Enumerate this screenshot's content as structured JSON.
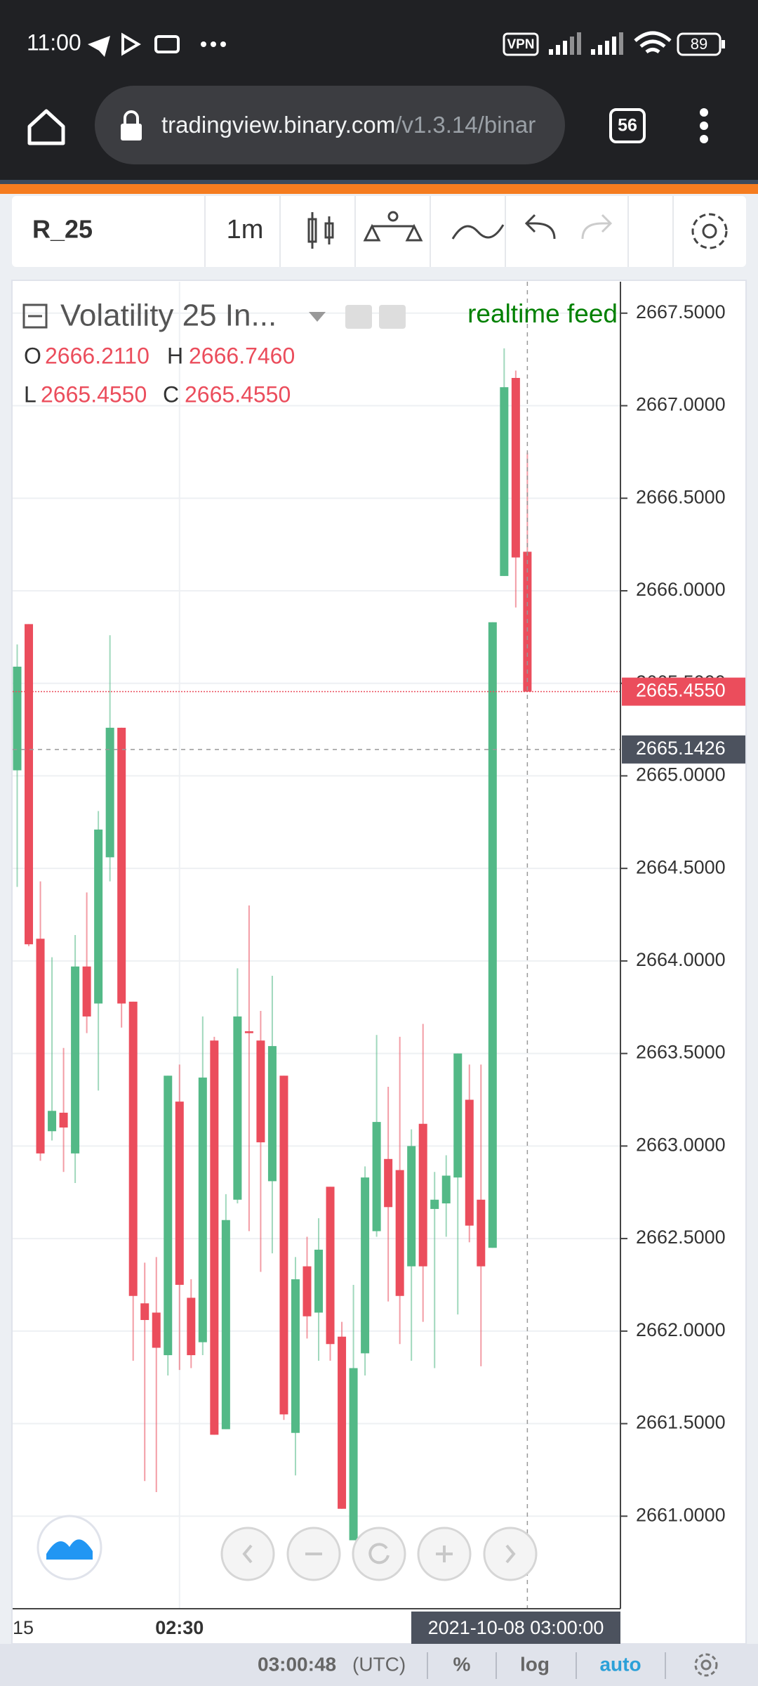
{
  "status_bar": {
    "time": "11:00",
    "vpn": "VPN",
    "battery": "89"
  },
  "browser": {
    "url_host": "tradingview.binary.com",
    "url_path": "/v1.3.14/binar",
    "tab_count": "56"
  },
  "toolbar": {
    "symbol": "R_25",
    "interval": "1m"
  },
  "legend": {
    "title": "Volatility 25 In...",
    "feed": "realtime feed",
    "o": "O",
    "o_value": "2666.2110",
    "h": "H",
    "h_value": "2666.7460",
    "l": "L",
    "l_value": "2665.4550",
    "c": "C",
    "c_value": "2665.4550"
  },
  "chart_data": {
    "type": "candlestick",
    "categories": [
      null,
      null,
      null,
      null,
      null,
      null,
      null,
      null,
      null,
      null,
      null,
      null,
      null,
      null,
      "02:30",
      null,
      null,
      null,
      null,
      null,
      null,
      null,
      null,
      null,
      null,
      null,
      null,
      null,
      null,
      null,
      null,
      null,
      null,
      null,
      null,
      null,
      null,
      null,
      null,
      null,
      null,
      null,
      null,
      null,
      null
    ],
    "open": [
      2665.03,
      2665.82,
      2664.12,
      2663.08,
      2663.18,
      2662.96,
      2663.97,
      2663.77,
      2664.56,
      2665.26,
      2663.78,
      2662.15,
      2662.1,
      2661.87,
      2663.24,
      2662.18,
      2661.94,
      2663.57,
      2661.47,
      2662.71,
      2663.62,
      2663.57,
      2662.81,
      2663.38,
      2661.45,
      2662.35,
      2662.1,
      2662.78,
      2661.97,
      2660.87,
      2661.88,
      2662.54,
      2662.93,
      2662.87,
      2662.35,
      2663.12,
      2662.66,
      2662.69,
      2662.83,
      2663.25,
      2662.71,
      2662.45,
      2666.08,
      2667.15,
      2666.211
    ],
    "high": [
      2665.71,
      2665.82,
      2664.43,
      2664.02,
      2663.53,
      2664.14,
      2664.37,
      2664.81,
      2665.76,
      2665.26,
      2663.78,
      2662.37,
      2662.4,
      2663.38,
      2663.44,
      2662.28,
      2663.7,
      2663.59,
      2662.74,
      2663.96,
      2664.3,
      2663.73,
      2663.92,
      2663.38,
      2662.4,
      2662.51,
      2662.61,
      2662.78,
      2662.05,
      2662.25,
      2662.89,
      2663.6,
      2663.32,
      2663.59,
      2663.09,
      2663.66,
      2662.86,
      2662.95,
      2663.5,
      2663.44,
      2663.44,
      2665.83,
      2667.31,
      2667.19,
      2666.746
    ],
    "low": [
      2664.4,
      2664.08,
      2662.92,
      2663.03,
      2662.86,
      2662.8,
      2663.61,
      2663.3,
      2664.43,
      2663.64,
      2661.84,
      2661.19,
      2661.13,
      2661.76,
      2661.79,
      2661.8,
      2661.87,
      2661.44,
      2661.47,
      2662.69,
      2662.54,
      2662.32,
      2662.42,
      2661.52,
      2661.22,
      2661.96,
      2661.84,
      2661.84,
      2661.04,
      2660.87,
      2661.76,
      2662.51,
      2662.16,
      2661.93,
      2661.84,
      2662.05,
      2661.8,
      2662.51,
      2662.09,
      2662.48,
      2661.81,
      2662.45,
      2666.08,
      2665.91,
      2665.455
    ],
    "close": [
      2665.59,
      2664.09,
      2662.96,
      2663.19,
      2663.1,
      2663.97,
      2663.7,
      2664.71,
      2665.26,
      2663.77,
      2662.19,
      2662.06,
      2661.91,
      2663.38,
      2662.25,
      2661.87,
      2663.37,
      2661.44,
      2662.6,
      2663.7,
      2663.61,
      2663.02,
      2663.54,
      2661.55,
      2662.28,
      2662.08,
      2662.44,
      2661.93,
      2661.04,
      2661.8,
      2662.83,
      2663.13,
      2662.67,
      2662.19,
      2663.0,
      2662.35,
      2662.71,
      2662.84,
      2663.5,
      2662.57,
      2662.35,
      2665.83,
      2667.1,
      2666.18,
      2665.455
    ],
    "up_color": "#53b987",
    "down_color": "#eb4d5c",
    "ylim": [
      2660.5,
      2667.67
    ],
    "yticks": [
      {
        "value": 2661,
        "label": "2661.0000"
      },
      {
        "value": 2661.5,
        "label": "2661.5000"
      },
      {
        "value": 2662,
        "label": "2662.0000"
      },
      {
        "value": 2662.5,
        "label": "2662.5000"
      },
      {
        "value": 2663,
        "label": "2663.0000"
      },
      {
        "value": 2663.5,
        "label": "2663.5000"
      },
      {
        "value": 2664,
        "label": "2664.0000"
      },
      {
        "value": 2664.5,
        "label": "2664.5000"
      },
      {
        "value": 2665,
        "label": "2665.0000"
      },
      {
        "value": 2665.5,
        "label": "2665.5000"
      },
      {
        "value": 2666,
        "label": "2666.0000"
      },
      {
        "value": 2666.5,
        "label": "2666.5000"
      },
      {
        "value": 2667,
        "label": "2667.0000"
      },
      {
        "value": 2667.5,
        "label": "2667.5000"
      }
    ],
    "grid": true,
    "last_price": {
      "value": 2665.455,
      "label": "2665.4550"
    },
    "crosshair_price": {
      "value": 2665.1426,
      "label": "2665.1426"
    },
    "crosshair_time": "2021-10-08 03:00:00",
    "edge_time_label": "15"
  },
  "status": {
    "clock": "03:00:48",
    "timezone": "(UTC)",
    "percent": "%",
    "log": "log",
    "auto": "auto"
  }
}
